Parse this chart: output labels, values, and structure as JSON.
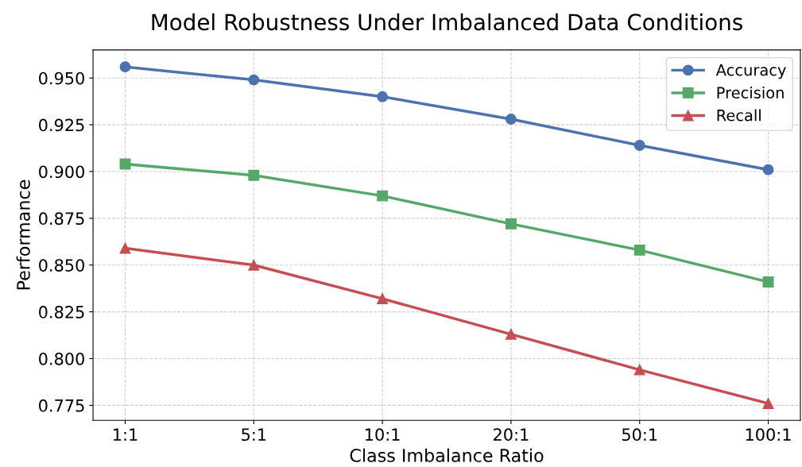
{
  "chart_data": {
    "type": "line",
    "title": "Model Robustness Under Imbalanced Data Conditions",
    "xlabel": "Class Imbalance Ratio",
    "ylabel": "Performance",
    "categories": [
      "1:1",
      "5:1",
      "10:1",
      "20:1",
      "50:1",
      "100:1"
    ],
    "series": [
      {
        "name": "Accuracy",
        "color": "#4c72b0",
        "marker": "circle",
        "values": [
          0.956,
          0.949,
          0.94,
          0.928,
          0.914,
          0.901
        ]
      },
      {
        "name": "Precision",
        "color": "#55a868",
        "marker": "square",
        "values": [
          0.904,
          0.898,
          0.887,
          0.872,
          0.858,
          0.841
        ]
      },
      {
        "name": "Recall",
        "color": "#c44e52",
        "marker": "triangle",
        "values": [
          0.859,
          0.85,
          0.832,
          0.813,
          0.794,
          0.776
        ]
      }
    ],
    "ylim": [
      0.767,
      0.965
    ],
    "yticks": [
      {
        "value": 0.775,
        "label": "0.775"
      },
      {
        "value": 0.8,
        "label": "0.800"
      },
      {
        "value": 0.825,
        "label": "0.825"
      },
      {
        "value": 0.85,
        "label": "0.850"
      },
      {
        "value": 0.875,
        "label": "0.875"
      },
      {
        "value": 0.9,
        "label": "0.900"
      },
      {
        "value": 0.925,
        "label": "0.925"
      },
      {
        "value": 0.95,
        "label": "0.950"
      }
    ],
    "grid": true,
    "legend": "top right",
    "line_style": "solid"
  }
}
